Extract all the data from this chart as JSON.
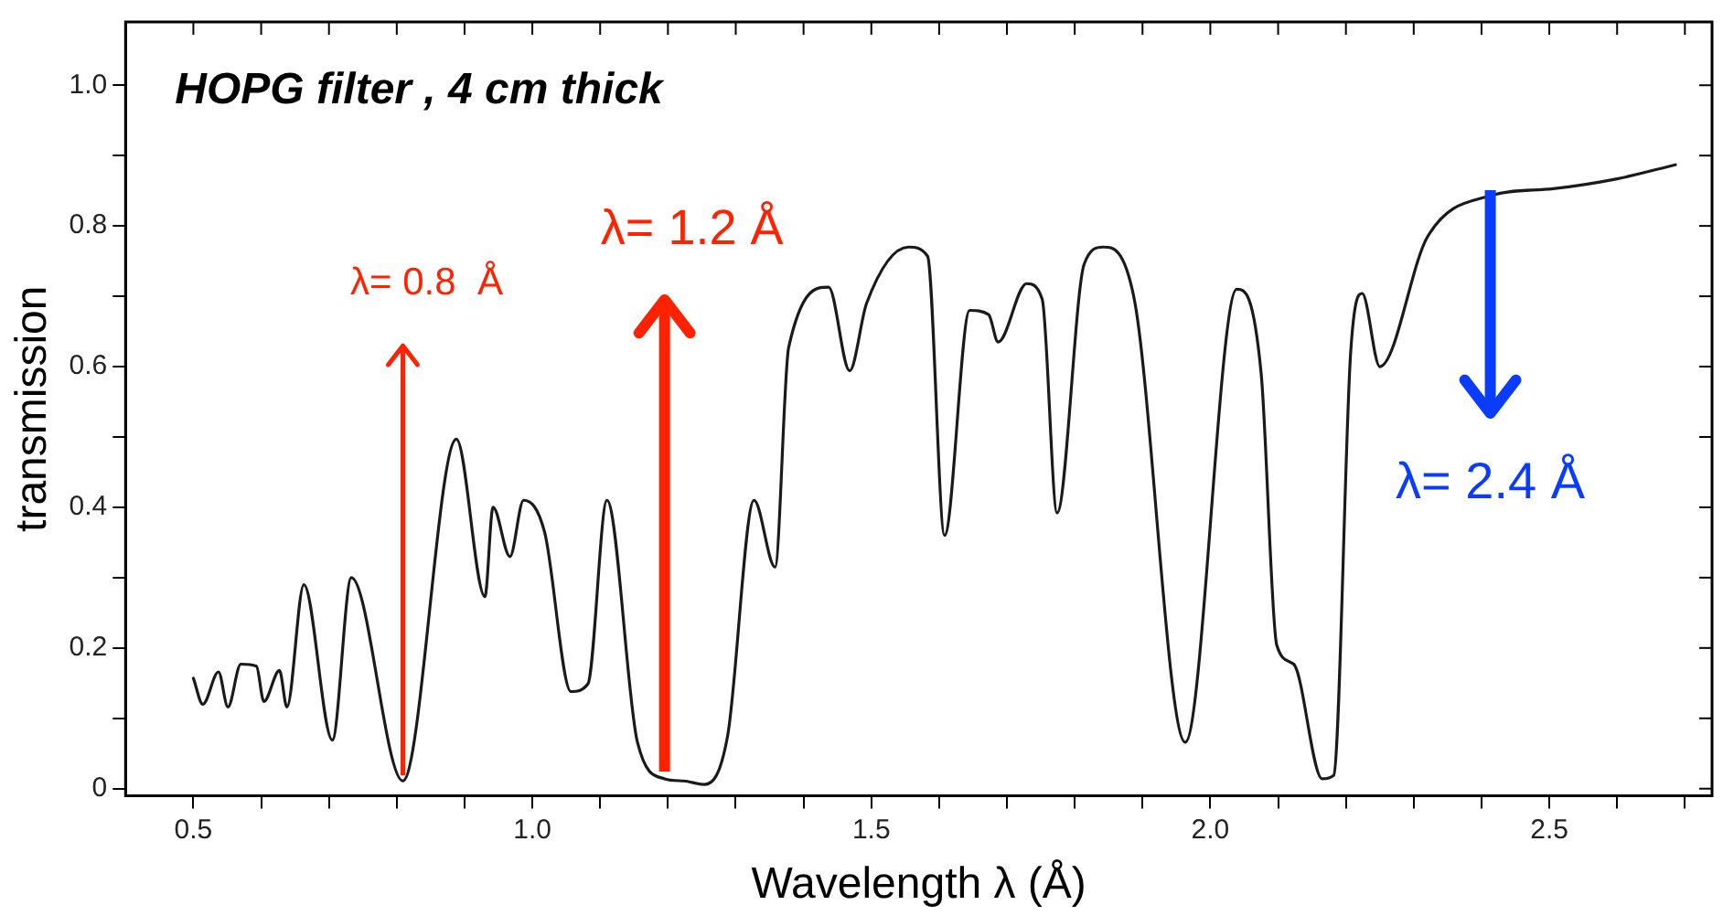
{
  "chart_data": {
    "type": "line",
    "title": "HOPG filter , 4 cm thick",
    "xlabel": "Wavelength λ (Å)",
    "ylabel": "transmission",
    "x": [
      0.5,
      0.514,
      0.537,
      0.551,
      0.57,
      0.593,
      0.604,
      0.627,
      0.638,
      0.663,
      0.705,
      0.733,
      0.809,
      0.888,
      0.93,
      0.942,
      0.967,
      0.987,
      1.018,
      1.057,
      1.082,
      1.11,
      1.155,
      1.195,
      1.223,
      1.254,
      1.288,
      1.327,
      1.358,
      1.378,
      1.437,
      1.468,
      1.493,
      1.555,
      1.583,
      1.608,
      1.645,
      1.673,
      1.687,
      1.729,
      1.752,
      1.774,
      1.814,
      1.842,
      1.887,
      1.963,
      2.039,
      2.075,
      2.098,
      2.123,
      2.165,
      2.182,
      2.207,
      2.224,
      2.25,
      2.32,
      2.413,
      2.506,
      2.6,
      2.686
    ],
    "series": [
      {
        "color": "#1a1a1a",
        "values": [
          0.157,
          0.12,
          0.166,
          0.116,
          0.177,
          0.174,
          0.124,
          0.168,
          0.116,
          0.29,
          0.069,
          0.3,
          0.011,
          0.497,
          0.273,
          0.4,
          0.33,
          0.41,
          0.365,
          0.138,
          0.149,
          0.41,
          0.066,
          0.014,
          0.011,
          0.006,
          0.075,
          0.41,
          0.315,
          0.627,
          0.713,
          0.594,
          0.69,
          0.77,
          0.757,
          0.36,
          0.68,
          0.674,
          0.635,
          0.718,
          0.696,
          0.392,
          0.746,
          0.77,
          0.7,
          0.066,
          0.71,
          0.59,
          0.204,
          0.177,
          0.014,
          0.019,
          0.62,
          0.704,
          0.6,
          0.784,
          0.843,
          0.853,
          0.867,
          0.887
        ]
      }
    ],
    "xlim": [
      0.4,
      2.74
    ],
    "ylim": [
      -0.01,
      1.09
    ],
    "xticks": [
      0.5,
      {
        "value": 0.6,
        "label": null
      },
      {
        "value": 0.7,
        "label": null
      },
      {
        "value": 0.8,
        "label": null
      },
      {
        "value": 0.9,
        "label": null
      },
      {
        "value": 1,
        "label": "1.0"
      },
      {
        "value": 1.1,
        "label": null
      },
      {
        "value": 1.2,
        "label": null
      },
      {
        "value": 1.3,
        "label": null
      },
      {
        "value": 1.4,
        "label": null
      },
      1.5,
      {
        "value": 1.6,
        "label": null
      },
      {
        "value": 1.7,
        "label": null
      },
      {
        "value": 1.8,
        "label": null
      },
      {
        "value": 1.9,
        "label": null
      },
      {
        "value": 2,
        "label": "2.0"
      },
      {
        "value": 2.1,
        "label": null
      },
      {
        "value": 2.2,
        "label": null
      },
      {
        "value": 2.3,
        "label": null
      },
      {
        "value": 2.4,
        "label": null
      },
      2.5,
      {
        "value": 2.6,
        "label": null
      },
      {
        "value": 2.7,
        "label": null
      }
    ],
    "yticks": [
      0,
      {
        "value": 0.1,
        "label": null
      },
      0.2,
      {
        "value": 0.3,
        "label": null
      },
      0.4,
      {
        "value": 0.5,
        "label": null
      },
      0.6,
      {
        "value": 0.7,
        "label": null
      },
      0.8,
      {
        "value": 0.9,
        "label": null
      },
      {
        "value": 1,
        "label": "1.0"
      }
    ],
    "annotations": [
      {
        "text": "λ= 0.8  Å",
        "x": 0.809,
        "y": 0.011
      },
      {
        "text": "λ= 1.2 Å",
        "x": 1.195,
        "y": 0.014
      },
      {
        "text": "λ= 2.4 Å",
        "x": 2.413,
        "y": 0.843
      }
    ],
    "grid": false,
    "legend": false,
    "marker": "none",
    "line_style": "solid"
  }
}
